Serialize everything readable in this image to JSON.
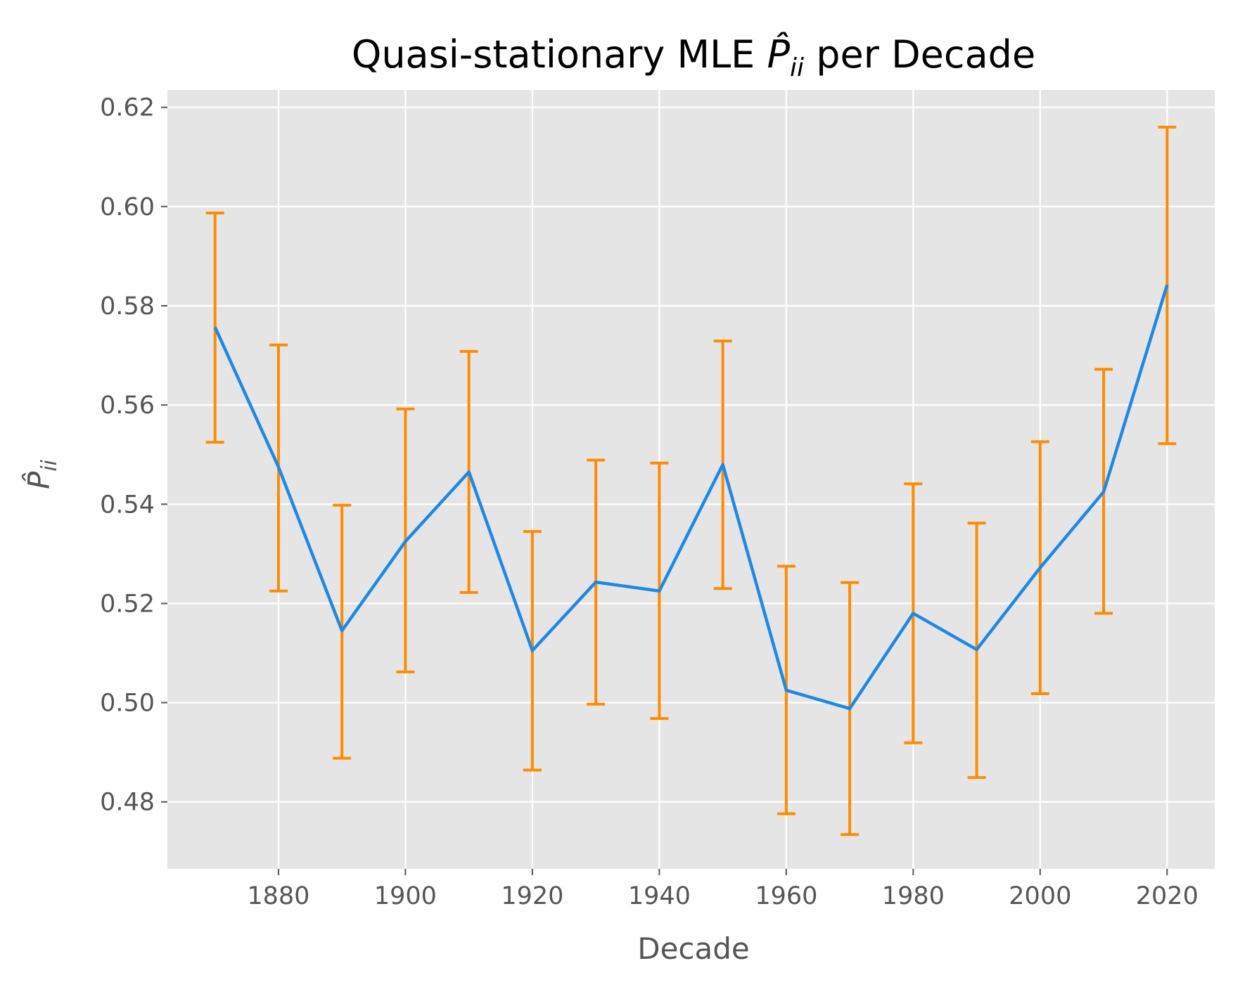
{
  "chart_data": {
    "type": "line",
    "title": "Quasi-stationary MLE P̂ii per Decade",
    "xlabel": "Decade",
    "ylabel": "P̂ii",
    "xlim": [
      1862.5,
      2027.5
    ],
    "ylim": [
      0.4665,
      0.6235
    ],
    "x_ticks": [
      1880,
      1900,
      1920,
      1940,
      1960,
      1980,
      2000,
      2020
    ],
    "y_ticks": [
      0.48,
      0.5,
      0.52,
      0.54,
      0.56,
      0.58,
      0.6,
      0.62
    ],
    "x_tick_labels": [
      "1880",
      "1900",
      "1920",
      "1940",
      "1960",
      "1980",
      "2000",
      "2020"
    ],
    "y_tick_labels": [
      "0.48",
      "0.50",
      "0.52",
      "0.54",
      "0.56",
      "0.58",
      "0.60",
      "0.62"
    ],
    "grid": true,
    "background": "#e5e5e5",
    "line_color": "#1e88e5",
    "errorbar_color": "#ff8c00",
    "series": [
      {
        "x": [
          1870,
          1880,
          1890,
          1900,
          1910,
          1920,
          1930,
          1940,
          1950,
          1960,
          1970,
          1980,
          1990,
          2000,
          2010,
          2020
        ],
        "y": [
          0.5757,
          0.5475,
          0.5145,
          0.5325,
          0.5465,
          0.5105,
          0.5243,
          0.5225,
          0.548,
          0.5025,
          0.4988,
          0.518,
          0.5107,
          0.5272,
          0.5425,
          0.5842
        ],
        "y_lower": [
          0.5525,
          0.5225,
          0.4888,
          0.5062,
          0.5222,
          0.4864,
          0.4997,
          0.4968,
          0.523,
          0.4776,
          0.4734,
          0.4919,
          0.4849,
          0.5018,
          0.518,
          0.5522
        ],
        "y_upper": [
          0.5987,
          0.5721,
          0.5398,
          0.5592,
          0.5708,
          0.5345,
          0.5489,
          0.5483,
          0.5729,
          0.5275,
          0.5242,
          0.5441,
          0.5362,
          0.5526,
          0.5672,
          0.616
        ]
      }
    ]
  }
}
